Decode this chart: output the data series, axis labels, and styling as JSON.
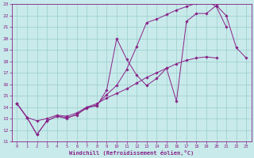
{
  "xlabel": "Windchill (Refroidissement éolien,°C)",
  "xlim": [
    -0.5,
    23.5
  ],
  "ylim": [
    11,
    23
  ],
  "yticks": [
    11,
    12,
    13,
    14,
    15,
    16,
    17,
    18,
    19,
    20,
    21,
    22,
    23
  ],
  "xticks": [
    0,
    1,
    2,
    3,
    4,
    5,
    6,
    7,
    8,
    9,
    10,
    11,
    12,
    13,
    14,
    15,
    16,
    17,
    18,
    19,
    20,
    21,
    22,
    23
  ],
  "bg_color": "#c8eaea",
  "line_color": "#882288",
  "grid_color": "#99cccc",
  "lines": [
    {
      "x": [
        0,
        1,
        2,
        3,
        4,
        5,
        6,
        7,
        8,
        9,
        10,
        11,
        12,
        13,
        14,
        15,
        16,
        17,
        18,
        19,
        20,
        21,
        22,
        23
      ],
      "y": [
        14.3,
        13.1,
        11.6,
        12.8,
        13.2,
        13.1,
        13.3,
        14.0,
        14.1,
        15.5,
        20.0,
        18.2,
        16.8,
        15.9,
        16.5,
        17.4,
        14.5,
        21.5,
        22.2,
        22.2,
        22.9,
        22.0,
        19.2,
        18.3
      ]
    },
    {
      "x": [
        0,
        1,
        2,
        3,
        4,
        5,
        6,
        7,
        8,
        9,
        10,
        11,
        12,
        13,
        14,
        15,
        16,
        17,
        18,
        19,
        20,
        21,
        22,
        23
      ],
      "y": [
        14.3,
        13.1,
        11.6,
        12.8,
        13.2,
        13.0,
        13.4,
        13.9,
        14.2,
        15.1,
        15.9,
        17.3,
        19.3,
        21.4,
        21.7,
        22.1,
        22.5,
        22.8,
        23.1,
        23.3,
        22.8,
        21.0,
        null,
        null
      ]
    },
    {
      "x": [
        0,
        1,
        2,
        3,
        4,
        5,
        6,
        7,
        8,
        9,
        10,
        11,
        12,
        13,
        14,
        15,
        16,
        17,
        18,
        19,
        20,
        21,
        22,
        23
      ],
      "y": [
        14.3,
        13.1,
        12.8,
        13.0,
        13.3,
        13.2,
        13.5,
        14.0,
        14.3,
        14.8,
        15.2,
        15.6,
        16.1,
        16.6,
        17.0,
        17.4,
        17.8,
        18.1,
        18.3,
        18.4,
        18.3,
        null,
        null,
        null
      ]
    }
  ]
}
